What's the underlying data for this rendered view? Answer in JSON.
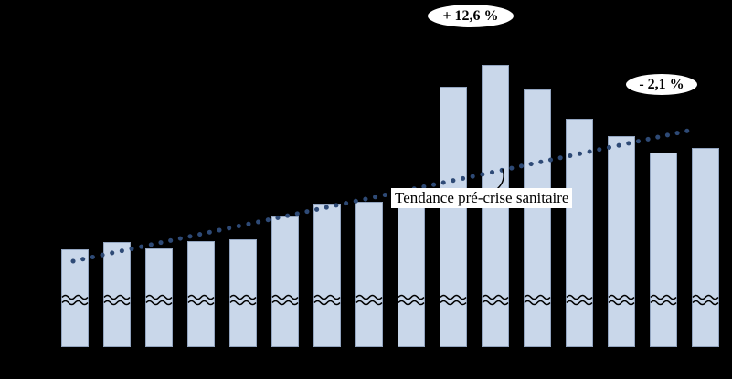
{
  "chart_data": {
    "type": "bar",
    "title": "",
    "n_bars": 16,
    "values": [
      107,
      115,
      108,
      116,
      118,
      143,
      157,
      159,
      161,
      285,
      309,
      282,
      250,
      231,
      213,
      218
    ],
    "values_note": "relative bar heights (axis scale and category labels are not visible in the screenshot; bars have an axis break near the base)",
    "axis_break": true,
    "trend": {
      "label": "Tendance pré-crise sanitaire",
      "style": "dotted-rising"
    },
    "annotations": [
      {
        "text": "+ 12,6 %",
        "position": "above-tallest-bar"
      },
      {
        "text": "- 2,1 %",
        "position": "upper-right"
      }
    ],
    "colors": {
      "background": "#000000",
      "bar_fill": "#c9d7ea",
      "bar_border": "#93a5c0",
      "trend_dots": "#2e4a76",
      "annotation_bg": "#ffffff",
      "annotation_border": "#000000",
      "label_bg": "#ffffff",
      "text": "#000000"
    }
  }
}
